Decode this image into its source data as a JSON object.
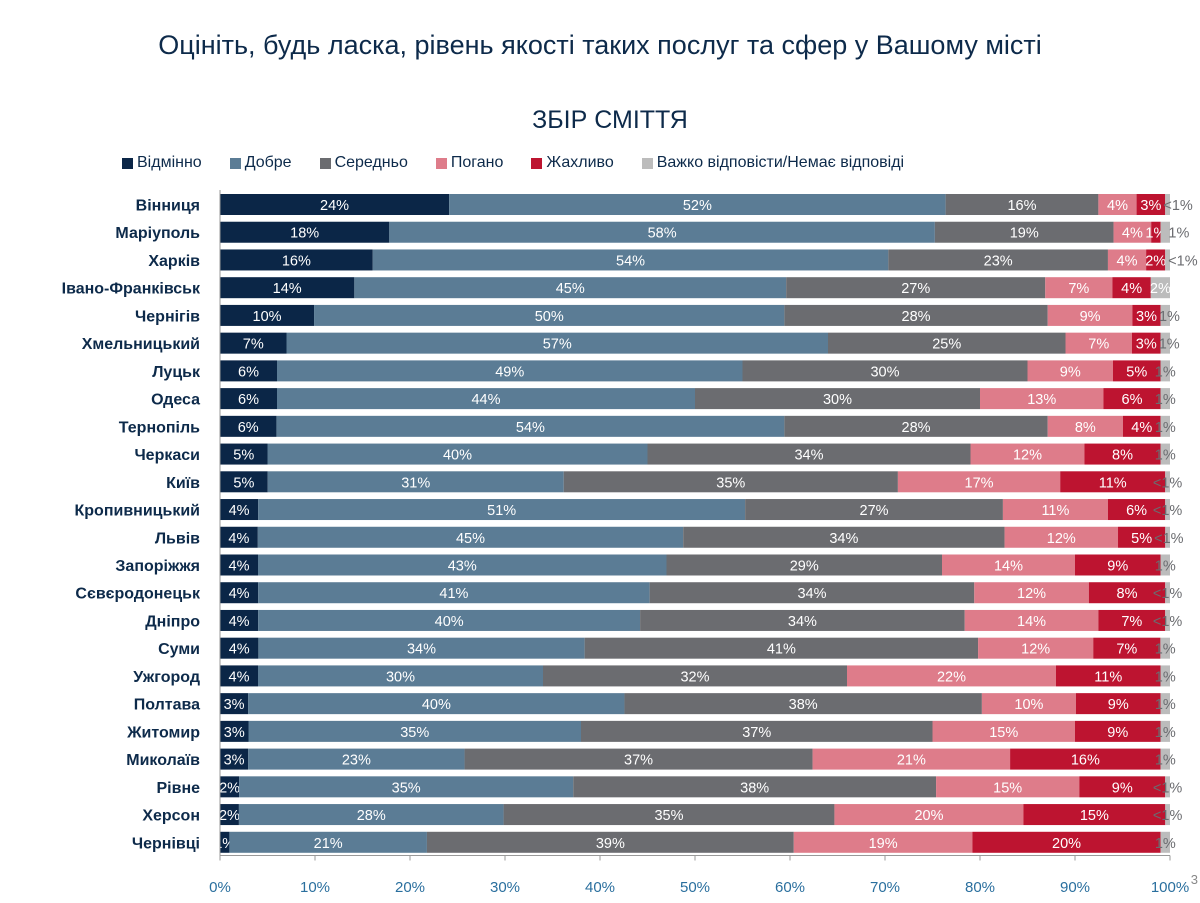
{
  "header": {
    "title": "Оцініть, будь ласка, рівень якості таких послуг та сфер у Вашому місті"
  },
  "page_number": "3",
  "chart_data": {
    "type": "bar",
    "orientation": "horizontal",
    "stacked": "100%",
    "title": "ЗБІР СМІТТЯ",
    "xlabel": "",
    "ylabel": "",
    "xlim": [
      0,
      100
    ],
    "x_ticks": [
      "0%",
      "10%",
      "20%",
      "30%",
      "40%",
      "50%",
      "60%",
      "70%",
      "80%",
      "90%",
      "100%"
    ],
    "legend_position": "top",
    "grid": false,
    "categories": [
      "Вінниця",
      "Маріуполь",
      "Харків",
      "Івано-Франківськ",
      "Чернігів",
      "Хмельницький",
      "Луцьк",
      "Одеса",
      "Тернопіль",
      "Черкаси",
      "Київ",
      "Кропивницький",
      "Львів",
      "Запоріжжя",
      "Сєвєродонецьк",
      "Дніпро",
      "Суми",
      "Ужгород",
      "Полтава",
      "Житомир",
      "Миколаїв",
      "Рівне",
      "Херсон",
      "Чернівці"
    ],
    "series": [
      {
        "name": "Відмінно",
        "color": "#0b2647",
        "values": [
          24,
          18,
          16,
          14,
          10,
          7,
          6,
          6,
          6,
          5,
          5,
          4,
          4,
          4,
          4,
          4,
          4,
          4,
          3,
          3,
          3,
          2,
          2,
          1
        ],
        "labels": [
          "24%",
          "18%",
          "16%",
          "14%",
          "10%",
          "7%",
          "6%",
          "6%",
          "6%",
          "5%",
          "5%",
          "4%",
          "4%",
          "4%",
          "4%",
          "4%",
          "4%",
          "4%",
          "3%",
          "3%",
          "3%",
          "2%",
          "2%",
          "1%"
        ]
      },
      {
        "name": "Добре",
        "color": "#5b7c95",
        "values": [
          52,
          58,
          54,
          45,
          50,
          57,
          49,
          44,
          54,
          40,
          31,
          51,
          45,
          43,
          41,
          40,
          34,
          30,
          40,
          35,
          23,
          35,
          28,
          21
        ],
        "labels": [
          "52%",
          "58%",
          "54%",
          "45%",
          "50%",
          "57%",
          "49%",
          "44%",
          "54%",
          "40%",
          "31%",
          "51%",
          "45%",
          "43%",
          "41%",
          "40%",
          "34%",
          "30%",
          "40%",
          "35%",
          "23%",
          "35%",
          "28%",
          "21%"
        ]
      },
      {
        "name": "Середньо",
        "color": "#6b6c70",
        "values": [
          16,
          19,
          23,
          27,
          28,
          25,
          30,
          30,
          28,
          34,
          35,
          27,
          34,
          29,
          34,
          34,
          41,
          32,
          38,
          37,
          37,
          38,
          35,
          39
        ],
        "labels": [
          "16%",
          "19%",
          "23%",
          "27%",
          "28%",
          "25%",
          "30%",
          "30%",
          "28%",
          "34%",
          "35%",
          "27%",
          "34%",
          "29%",
          "34%",
          "34%",
          "41%",
          "32%",
          "38%",
          "37%",
          "37%",
          "38%",
          "35%",
          "39%"
        ]
      },
      {
        "name": "Погано",
        "color": "#de7c8a",
        "values": [
          4,
          4,
          4,
          7,
          9,
          7,
          9,
          13,
          8,
          12,
          17,
          11,
          12,
          14,
          12,
          14,
          12,
          22,
          10,
          15,
          21,
          15,
          20,
          19
        ],
        "labels": [
          "4%",
          "4%",
          "4%",
          "7%",
          "9%",
          "7%",
          "9%",
          "13%",
          "8%",
          "12%",
          "17%",
          "11%",
          "12%",
          "14%",
          "12%",
          "14%",
          "12%",
          "22%",
          "10%",
          "15%",
          "21%",
          "15%",
          "20%",
          "19%"
        ]
      },
      {
        "name": "Жахливо",
        "color": "#bd1430",
        "values": [
          3,
          1,
          2,
          4,
          3,
          3,
          5,
          6,
          4,
          8,
          11,
          6,
          5,
          9,
          8,
          7,
          7,
          11,
          9,
          9,
          16,
          9,
          15,
          20
        ],
        "labels": [
          "3%",
          "1%",
          "2%",
          "4%",
          "3%",
          "3%",
          "5%",
          "6%",
          "4%",
          "8%",
          "11%",
          "6%",
          "5%",
          "9%",
          "8%",
          "7%",
          "7%",
          "11%",
          "9%",
          "9%",
          "16%",
          "9%",
          "15%",
          "20%"
        ]
      },
      {
        "name": "Важко відповісти/Немає відповіді",
        "color": "#bcbcbc",
        "values": [
          0.5,
          1,
          0.5,
          2,
          1,
          1,
          1,
          1,
          1,
          1,
          0.5,
          0.5,
          0.5,
          1,
          0.5,
          0.5,
          1,
          1,
          1,
          1,
          1,
          0.5,
          0.5,
          1
        ],
        "labels": [
          "<1%",
          "1%",
          "<1%",
          "2%",
          "1%",
          "1%",
          "1%",
          "1%",
          "1%",
          "1%",
          "<1%",
          "<1%",
          "<1%",
          "1%",
          "<1%",
          "<1%",
          "1%",
          "1%",
          "1%",
          "1%",
          "1%",
          "<1%",
          "<1%",
          "1%"
        ]
      }
    ]
  }
}
